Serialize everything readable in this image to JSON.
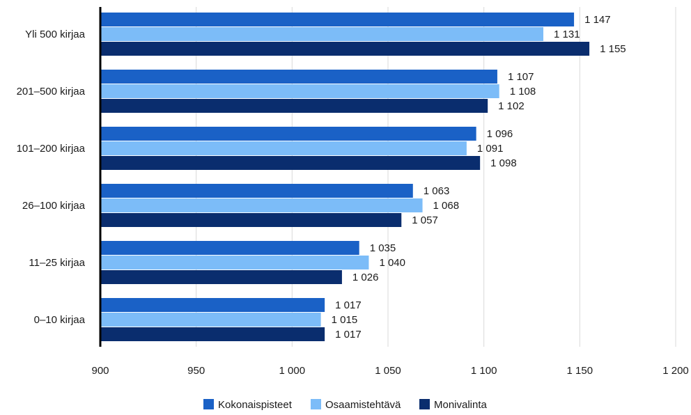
{
  "chart_data": {
    "type": "bar",
    "orientation": "horizontal",
    "categories": [
      "Yli 500 kirjaa",
      "201–500 kirjaa",
      "101–200 kirjaa",
      "26–100 kirjaa",
      "11–25 kirjaa",
      "0–10 kirjaa"
    ],
    "series": [
      {
        "name": "Kokonaispisteet",
        "color": "#1a61c6",
        "values": [
          1147,
          1107,
          1096,
          1063,
          1035,
          1017
        ],
        "labels": [
          "1 147",
          "1 107",
          "1 096",
          "1 063",
          "1 035",
          "1 017"
        ]
      },
      {
        "name": "Osaamistehtävä",
        "color": "#7cbcf8",
        "values": [
          1131,
          1108,
          1091,
          1068,
          1040,
          1015
        ],
        "labels": [
          "1 131",
          "1 108",
          "1 091",
          "1 068",
          "1 040",
          "1 015"
        ]
      },
      {
        "name": "Monivalinta",
        "color": "#0a2d6e",
        "values": [
          1155,
          1102,
          1098,
          1057,
          1026,
          1017
        ],
        "labels": [
          "1 155",
          "1 102",
          "1 098",
          "1 057",
          "1 026",
          "1 017"
        ]
      }
    ],
    "xlim": [
      900,
      1200
    ],
    "ticks": [
      900,
      950,
      1000,
      1050,
      1100,
      1150,
      1200
    ],
    "tick_labels": [
      "900",
      "950",
      "1 000",
      "1 050",
      "1 100",
      "1 150",
      "1 200"
    ],
    "grid": true,
    "legend_position": "bottom-center",
    "gridline_color": "#d9d9d9",
    "axis_color": "#000000"
  }
}
